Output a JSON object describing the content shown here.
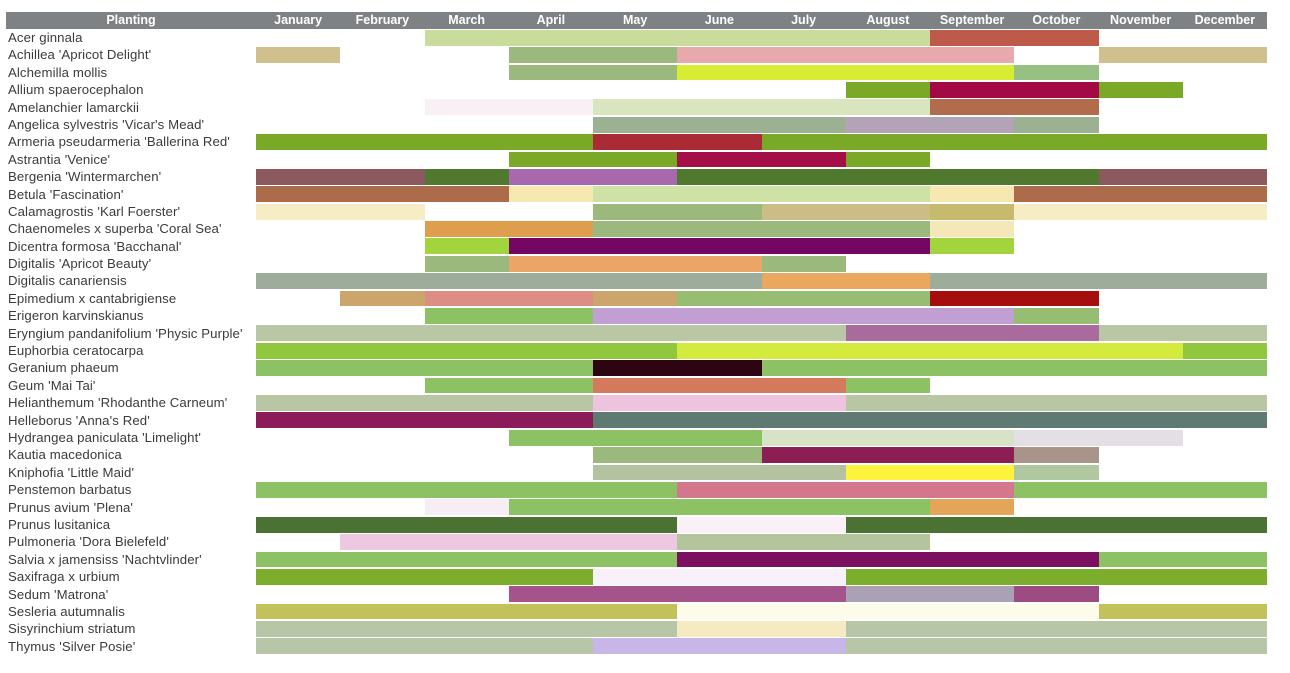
{
  "header": {
    "planting_label": "Planting",
    "months": [
      "January",
      "February",
      "March",
      "April",
      "May",
      "June",
      "July",
      "August",
      "September",
      "October",
      "November",
      "December"
    ]
  },
  "colors": {
    "header_bg": "#7f8285",
    "header_text": "#ffffff",
    "label_text": "#3b3b3b",
    "page_bg": "#ffffff"
  },
  "chart_data": {
    "type": "gantt",
    "title": "Planting",
    "x_categories": [
      "January",
      "February",
      "March",
      "April",
      "May",
      "June",
      "July",
      "August",
      "September",
      "October",
      "November",
      "December"
    ],
    "x_range_months": [
      1,
      12
    ],
    "legend": "none",
    "grid": "off",
    "note": "Each row shows colored month-span segments of seasonal interest per plant; start/end are inclusive month numbers (1=January).",
    "rows": [
      {
        "plant": "Acer ginnala",
        "segments": [
          {
            "start": 3,
            "end": 8,
            "color": "#c9dc9b"
          },
          {
            "start": 9,
            "end": 10,
            "color": "#bd5a49"
          }
        ]
      },
      {
        "plant": "Achillea 'Apricot Delight'",
        "segments": [
          {
            "start": 1,
            "end": 1,
            "color": "#cfc08e"
          },
          {
            "start": 4,
            "end": 5,
            "color": "#9bb97d"
          },
          {
            "start": 6,
            "end": 9,
            "color": "#e7a9ab"
          },
          {
            "start": 11,
            "end": 12,
            "color": "#cfc08e"
          }
        ]
      },
      {
        "plant": "Alchemilla mollis",
        "segments": [
          {
            "start": 4,
            "end": 5,
            "color": "#9bb97d"
          },
          {
            "start": 6,
            "end": 9,
            "color": "#d8ec33"
          },
          {
            "start": 10,
            "end": 10,
            "color": "#97c083"
          }
        ]
      },
      {
        "plant": "Allium spaerocephalon",
        "segments": [
          {
            "start": 8,
            "end": 8,
            "color": "#7aa928"
          },
          {
            "start": 9,
            "end": 10,
            "color": "#a30a45"
          },
          {
            "start": 11,
            "end": 11,
            "color": "#7aa928"
          }
        ]
      },
      {
        "plant": "Amelanchier lamarckii",
        "segments": [
          {
            "start": 3,
            "end": 4,
            "color": "#f8f0f5"
          },
          {
            "start": 5,
            "end": 8,
            "color": "#d9e5be"
          },
          {
            "start": 9,
            "end": 10,
            "color": "#b26b4b"
          }
        ]
      },
      {
        "plant": "Angelica sylvestris 'Vicar's Mead'",
        "segments": [
          {
            "start": 5,
            "end": 7,
            "color": "#9cb191"
          },
          {
            "start": 8,
            "end": 9,
            "color": "#b2a4b6"
          },
          {
            "start": 10,
            "end": 10,
            "color": "#9cb191"
          }
        ]
      },
      {
        "plant": "Armeria pseudarmeria 'Ballerina Red'",
        "segments": [
          {
            "start": 1,
            "end": 4,
            "color": "#7aa928"
          },
          {
            "start": 5,
            "end": 6,
            "color": "#aa2a36"
          },
          {
            "start": 7,
            "end": 12,
            "color": "#7aa928"
          }
        ]
      },
      {
        "plant": "Astrantia 'Venice'",
        "segments": [
          {
            "start": 4,
            "end": 5,
            "color": "#7aa928"
          },
          {
            "start": 6,
            "end": 7,
            "color": "#a50f48"
          },
          {
            "start": 8,
            "end": 8,
            "color": "#7aa928"
          }
        ]
      },
      {
        "plant": "Bergenia 'Wintermarchen'",
        "segments": [
          {
            "start": 1,
            "end": 2,
            "color": "#8c5a5e"
          },
          {
            "start": 3,
            "end": 3,
            "color": "#50792f"
          },
          {
            "start": 4,
            "end": 5,
            "color": "#a768ae"
          },
          {
            "start": 6,
            "end": 10,
            "color": "#50792f"
          },
          {
            "start": 11,
            "end": 12,
            "color": "#8c5a5e"
          }
        ]
      },
      {
        "plant": "Betula 'Fascination'",
        "segments": [
          {
            "start": 1,
            "end": 3,
            "color": "#ac6b4b"
          },
          {
            "start": 4,
            "end": 4,
            "color": "#f5e8b0"
          },
          {
            "start": 5,
            "end": 8,
            "color": "#cfe2a6"
          },
          {
            "start": 9,
            "end": 9,
            "color": "#f5e8b0"
          },
          {
            "start": 10,
            "end": 12,
            "color": "#ac6b4b"
          }
        ]
      },
      {
        "plant": "Calamagrostis 'Karl Foerster'",
        "segments": [
          {
            "start": 1,
            "end": 2,
            "color": "#f7edc4"
          },
          {
            "start": 5,
            "end": 6,
            "color": "#9bb97d"
          },
          {
            "start": 7,
            "end": 8,
            "color": "#ccbd86"
          },
          {
            "start": 9,
            "end": 9,
            "color": "#c6ba6e"
          },
          {
            "start": 10,
            "end": 12,
            "color": "#f7edc4"
          }
        ]
      },
      {
        "plant": "Chaenomeles x superba 'Coral Sea'",
        "segments": [
          {
            "start": 3,
            "end": 4,
            "color": "#de9e4d"
          },
          {
            "start": 5,
            "end": 8,
            "color": "#9bb97d"
          },
          {
            "start": 9,
            "end": 9,
            "color": "#f4e8b8"
          }
        ]
      },
      {
        "plant": "Dicentra formosa 'Bacchanal'",
        "segments": [
          {
            "start": 3,
            "end": 3,
            "color": "#a2d43d"
          },
          {
            "start": 4,
            "end": 8,
            "color": "#740761"
          },
          {
            "start": 9,
            "end": 9,
            "color": "#a2d43d"
          }
        ]
      },
      {
        "plant": "Digitalis 'Apricot Beauty'",
        "segments": [
          {
            "start": 3,
            "end": 3,
            "color": "#9bb97d"
          },
          {
            "start": 4,
            "end": 6,
            "color": "#eba566"
          },
          {
            "start": 7,
            "end": 7,
            "color": "#9bb97d"
          }
        ]
      },
      {
        "plant": "Digitalis canariensis",
        "segments": [
          {
            "start": 1,
            "end": 6,
            "color": "#9dac9b"
          },
          {
            "start": 7,
            "end": 8,
            "color": "#e9a85e"
          },
          {
            "start": 9,
            "end": 12,
            "color": "#9dac9b"
          }
        ]
      },
      {
        "plant": "Epimedium x cantabrigiense",
        "segments": [
          {
            "start": 2,
            "end": 2,
            "color": "#cba56c"
          },
          {
            "start": 3,
            "end": 4,
            "color": "#dd8d83"
          },
          {
            "start": 5,
            "end": 5,
            "color": "#cba56c"
          },
          {
            "start": 6,
            "end": 8,
            "color": "#97bd72"
          },
          {
            "start": 9,
            "end": 10,
            "color": "#a60d0d"
          }
        ]
      },
      {
        "plant": "Erigeron karvinskianus",
        "segments": [
          {
            "start": 3,
            "end": 4,
            "color": "#8cc164"
          },
          {
            "start": 5,
            "end": 9,
            "color": "#c19fd3"
          },
          {
            "start": 10,
            "end": 10,
            "color": "#97bd72"
          }
        ]
      },
      {
        "plant": "Eryngium pandanifolium 'Physic Purple'",
        "segments": [
          {
            "start": 1,
            "end": 7,
            "color": "#bac7a4"
          },
          {
            "start": 8,
            "end": 10,
            "color": "#a96a9e"
          },
          {
            "start": 11,
            "end": 12,
            "color": "#bac7a4"
          }
        ]
      },
      {
        "plant": "Euphorbia ceratocarpa",
        "segments": [
          {
            "start": 1,
            "end": 5,
            "color": "#90c73e"
          },
          {
            "start": 6,
            "end": 11,
            "color": "#d4ea3c"
          },
          {
            "start": 12,
            "end": 12,
            "color": "#90c73e"
          }
        ]
      },
      {
        "plant": "Geranium phaeum",
        "segments": [
          {
            "start": 1,
            "end": 4,
            "color": "#8cc164"
          },
          {
            "start": 5,
            "end": 6,
            "color": "#2d0512"
          },
          {
            "start": 7,
            "end": 12,
            "color": "#8cc164"
          }
        ]
      },
      {
        "plant": "Geum 'Mai Tai'",
        "segments": [
          {
            "start": 3,
            "end": 4,
            "color": "#8cc164"
          },
          {
            "start": 5,
            "end": 7,
            "color": "#d4795c"
          },
          {
            "start": 8,
            "end": 8,
            "color": "#8cc164"
          }
        ]
      },
      {
        "plant": "Helianthemum 'Rhodanthe Carneum'",
        "segments": [
          {
            "start": 1,
            "end": 4,
            "color": "#b8c6a4"
          },
          {
            "start": 5,
            "end": 7,
            "color": "#edc3dd"
          },
          {
            "start": 8,
            "end": 12,
            "color": "#b8c6a4"
          }
        ]
      },
      {
        "plant": "Helleborus 'Anna's Red'",
        "segments": [
          {
            "start": 1,
            "end": 4,
            "color": "#8c1b59"
          },
          {
            "start": 5,
            "end": 12,
            "color": "#5e7a73"
          }
        ]
      },
      {
        "plant": "Hydrangea paniculata 'Limelight'",
        "segments": [
          {
            "start": 4,
            "end": 6,
            "color": "#8cc164"
          },
          {
            "start": 7,
            "end": 9,
            "color": "#d6e3c6"
          },
          {
            "start": 10,
            "end": 11,
            "color": "#e4dfe5"
          }
        ]
      },
      {
        "plant": "Kautia macedonica",
        "segments": [
          {
            "start": 5,
            "end": 6,
            "color": "#9bb97d"
          },
          {
            "start": 7,
            "end": 9,
            "color": "#8b1e53"
          },
          {
            "start": 10,
            "end": 10,
            "color": "#a9948a"
          }
        ]
      },
      {
        "plant": "Kniphofia 'Little Maid'",
        "segments": [
          {
            "start": 5,
            "end": 7,
            "color": "#b5c29f"
          },
          {
            "start": 8,
            "end": 9,
            "color": "#fdf23c"
          },
          {
            "start": 10,
            "end": 10,
            "color": "#b0c79f"
          }
        ]
      },
      {
        "plant": "Penstemon barbatus",
        "segments": [
          {
            "start": 1,
            "end": 5,
            "color": "#8cc164"
          },
          {
            "start": 6,
            "end": 9,
            "color": "#d3778d"
          },
          {
            "start": 10,
            "end": 12,
            "color": "#8cc164"
          }
        ]
      },
      {
        "plant": "Prunus avium 'Plena'",
        "segments": [
          {
            "start": 3,
            "end": 3,
            "color": "#f6eef4"
          },
          {
            "start": 4,
            "end": 8,
            "color": "#8cc164"
          },
          {
            "start": 9,
            "end": 9,
            "color": "#e3a659"
          }
        ]
      },
      {
        "plant": "Prunus lusitanica",
        "segments": [
          {
            "start": 1,
            "end": 5,
            "color": "#4b7232"
          },
          {
            "start": 6,
            "end": 7,
            "color": "#f9f1f7"
          },
          {
            "start": 8,
            "end": 12,
            "color": "#4b7232"
          }
        ]
      },
      {
        "plant": "Pulmoneria 'Dora Bielefeld'",
        "segments": [
          {
            "start": 2,
            "end": 5,
            "color": "#ecc9e0"
          },
          {
            "start": 6,
            "end": 8,
            "color": "#b4c59d"
          }
        ]
      },
      {
        "plant": "Salvia x jamensiss 'Nachtvlinder'",
        "segments": [
          {
            "start": 1,
            "end": 5,
            "color": "#8cc164"
          },
          {
            "start": 6,
            "end": 10,
            "color": "#7b1061"
          },
          {
            "start": 11,
            "end": 12,
            "color": "#8cc164"
          }
        ]
      },
      {
        "plant": "Saxifraga x urbium",
        "segments": [
          {
            "start": 1,
            "end": 4,
            "color": "#7dad2c"
          },
          {
            "start": 5,
            "end": 7,
            "color": "#f8f1f9"
          },
          {
            "start": 8,
            "end": 12,
            "color": "#7dad2c"
          }
        ]
      },
      {
        "plant": "Sedum 'Matrona'",
        "segments": [
          {
            "start": 4,
            "end": 7,
            "color": "#a4538b"
          },
          {
            "start": 8,
            "end": 9,
            "color": "#aba1b5"
          },
          {
            "start": 10,
            "end": 10,
            "color": "#9d4c82"
          }
        ]
      },
      {
        "plant": "Sesleria autumnalis",
        "segments": [
          {
            "start": 1,
            "end": 5,
            "color": "#c1c25c"
          },
          {
            "start": 6,
            "end": 10,
            "color": "#fdfcea"
          },
          {
            "start": 11,
            "end": 12,
            "color": "#c1c25c"
          }
        ]
      },
      {
        "plant": "Sisyrinchium striatum",
        "segments": [
          {
            "start": 1,
            "end": 5,
            "color": "#b8c6a8"
          },
          {
            "start": 6,
            "end": 7,
            "color": "#f6eac1"
          },
          {
            "start": 8,
            "end": 12,
            "color": "#b8c6a8"
          }
        ]
      },
      {
        "plant": "Thymus 'Silver Posie'",
        "segments": [
          {
            "start": 1,
            "end": 4,
            "color": "#b8c6a8"
          },
          {
            "start": 5,
            "end": 7,
            "color": "#c9b6e9"
          },
          {
            "start": 8,
            "end": 12,
            "color": "#b8c6a8"
          }
        ]
      }
    ]
  }
}
